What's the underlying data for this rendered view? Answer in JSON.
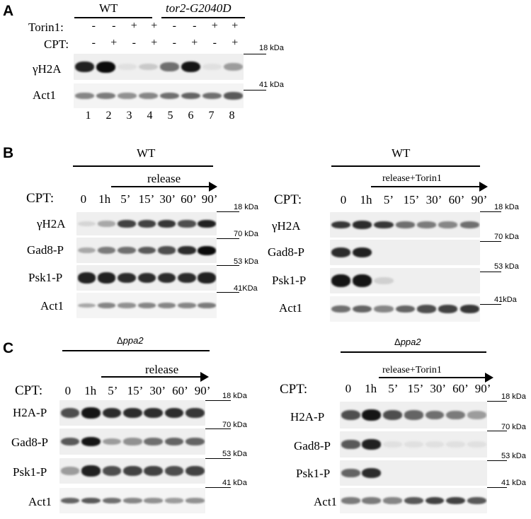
{
  "panelA": {
    "letter": "A",
    "wt": "WT",
    "mutant": "tor2-G2040D",
    "torin_label": "Torin1:",
    "cpt_label": "CPT:",
    "torin_signs": [
      "-",
      "-",
      "+",
      "+",
      "-",
      "-",
      "+",
      "+"
    ],
    "cpt_signs": [
      "-",
      "+",
      "-",
      "+",
      "-",
      "+",
      "-",
      "+"
    ],
    "rows": [
      {
        "label": "γH2A",
        "marker": "18 kDa",
        "bands": [
          0.9,
          1.0,
          0.05,
          0.15,
          0.55,
          0.95,
          0.05,
          0.35
        ]
      },
      {
        "label": "Act1",
        "marker": "41 kDa",
        "bands": [
          0.45,
          0.5,
          0.4,
          0.45,
          0.55,
          0.6,
          0.55,
          0.65
        ]
      }
    ],
    "lanes": [
      "1",
      "2",
      "3",
      "4",
      "5",
      "6",
      "7",
      "8"
    ]
  },
  "panelB": {
    "letter": "B",
    "left": {
      "header": "WT",
      "release": "release",
      "cpt_label": "CPT:",
      "timepoints": [
        "0",
        "1h",
        "5’",
        "15’",
        "30’",
        "60’",
        "90’"
      ],
      "rows": [
        {
          "label": "γH2A",
          "marker": "18 kDa",
          "bands": [
            0.1,
            0.3,
            0.75,
            0.75,
            0.8,
            0.7,
            0.9
          ]
        },
        {
          "label": "Gad8-P",
          "marker": "70 kDa",
          "bands": [
            0.3,
            0.5,
            0.55,
            0.65,
            0.7,
            0.85,
            1.0
          ]
        },
        {
          "label": "Psk1-P",
          "marker": "53 kDa",
          "bands": [
            0.9,
            0.9,
            0.85,
            0.85,
            0.85,
            0.85,
            0.9
          ]
        },
        {
          "label": "Act1",
          "marker": "41KDa",
          "bands": [
            0.3,
            0.45,
            0.4,
            0.45,
            0.45,
            0.45,
            0.5
          ]
        }
      ]
    },
    "right": {
      "header": "WT",
      "release": "release+Torin1",
      "cpt_label": "CPT:",
      "timepoints": [
        "0",
        "1h",
        "5’",
        "15’",
        "30’",
        "60’",
        "90’"
      ],
      "rows": [
        {
          "label": "γH2A",
          "marker": "18 kDa",
          "bands": [
            0.8,
            0.85,
            0.8,
            0.55,
            0.5,
            0.45,
            0.55
          ]
        },
        {
          "label": "Gad8-P",
          "marker": "70 kDa",
          "bands": [
            0.85,
            0.9,
            0,
            0,
            0,
            0,
            0
          ]
        },
        {
          "label": "Psk1-P",
          "marker": "53 kDa",
          "bands": [
            0.95,
            0.95,
            0.12,
            0,
            0,
            0,
            0
          ]
        },
        {
          "label": "Act1",
          "marker": "41kDa",
          "bands": [
            0.55,
            0.6,
            0.45,
            0.6,
            0.7,
            0.75,
            0.8
          ]
        }
      ]
    }
  },
  "panelC": {
    "letter": "C",
    "left": {
      "header_delta": "Δ",
      "header_gene": "ppa2",
      "release": "release",
      "cpt_label": "CPT:",
      "timepoints": [
        "0",
        "1h",
        "5’",
        "15’",
        "30’",
        "60’",
        "90’"
      ],
      "rows": [
        {
          "label": "H2A-P",
          "marker": "18 kDa",
          "bands": [
            0.7,
            0.95,
            0.85,
            0.85,
            0.85,
            0.85,
            0.8
          ]
        },
        {
          "label": "Gad8-P",
          "marker": "70 kDa",
          "bands": [
            0.65,
            0.95,
            0.35,
            0.4,
            0.55,
            0.6,
            0.6
          ]
        },
        {
          "label": "Psk1-P",
          "marker": "53 kDa",
          "bands": [
            0.35,
            0.9,
            0.7,
            0.75,
            0.75,
            0.7,
            0.75
          ]
        },
        {
          "label": "Act1",
          "marker": "41 kDa",
          "bands": [
            0.6,
            0.65,
            0.55,
            0.45,
            0.4,
            0.35,
            0.4
          ]
        }
      ]
    },
    "right": {
      "header_delta": "Δ",
      "header_gene": "ppa2",
      "release": "release+Torin1",
      "cpt_label": "CPT:",
      "timepoints": [
        "0",
        "1h",
        "5’",
        "15’",
        "30’",
        "60’",
        "90’"
      ],
      "rows": [
        {
          "label": "H2A-P",
          "marker": "18 kDa",
          "bands": [
            0.7,
            0.95,
            0.7,
            0.6,
            0.55,
            0.5,
            0.35
          ]
        },
        {
          "label": "Gad8-P",
          "marker": "70 kDa",
          "bands": [
            0.65,
            0.9,
            0.05,
            0.05,
            0.05,
            0.05,
            0.05
          ]
        },
        {
          "label": "Psk1-P",
          "marker": "53 kDa",
          "bands": [
            0.6,
            0.85,
            0,
            0,
            0,
            0,
            0
          ]
        },
        {
          "label": "Act1",
          "marker": "41 kDa",
          "bands": [
            0.5,
            0.5,
            0.45,
            0.65,
            0.75,
            0.75,
            0.65
          ]
        }
      ]
    }
  }
}
